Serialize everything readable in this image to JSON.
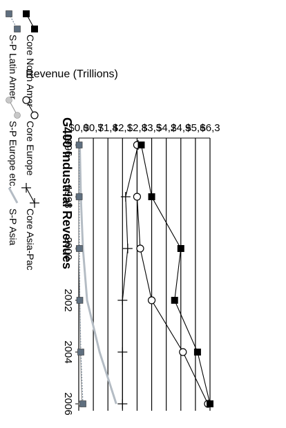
{
  "chart_data": {
    "type": "line",
    "title": "G400 Industrial Revenues",
    "ylabel": "Revenue (Trillions)",
    "xlabel": "",
    "x": [
      1996,
      1998,
      2000,
      2002,
      2004,
      2006
    ],
    "x_tick_labels": [
      "1996",
      "1998",
      "2000",
      "2002",
      "2004",
      "2006"
    ],
    "ylim": [
      0,
      6.3
    ],
    "y_ticks": [
      0,
      0.7,
      1.4,
      2.1,
      2.8,
      3.5,
      4.2,
      4.9,
      5.6,
      6.3
    ],
    "y_tick_labels": [
      "$0,0",
      "$0,7",
      "$1,4",
      "$2,1",
      "$2,8",
      "$3,5",
      "$4,2",
      "$4,9",
      "$5,6",
      "$6,3"
    ],
    "grid": true,
    "legend_position": "bottom",
    "orientation": "rotated-90-clockwise",
    "series": [
      {
        "name": "Core North Amer",
        "marker": "filled-square",
        "color": "#000000",
        "values": [
          3.0,
          3.5,
          4.9,
          4.6,
          5.7,
          6.3
        ]
      },
      {
        "name": "Core Europe",
        "marker": "open-circle",
        "color": "#000000",
        "values": [
          2.8,
          2.8,
          2.95,
          3.5,
          5.0,
          6.2
        ]
      },
      {
        "name": "Core Asia-Pac",
        "marker": "plus",
        "color": "#000000",
        "values": [
          2.85,
          2.25,
          2.35,
          2.1,
          2.1,
          2.1
        ]
      },
      {
        "name": "S-P Latin Amer",
        "marker": "gray-square",
        "color": "#5f6f7f",
        "values": [
          0.02,
          0.02,
          0.03,
          0.05,
          0.1,
          0.2
        ]
      },
      {
        "name": "S-P Europe etc.",
        "marker": "gray-sphere",
        "color": "#a8a8a8",
        "values": [
          0.0,
          0.0,
          0.0,
          0.05,
          0.08,
          0.15
        ]
      },
      {
        "name": "S-P Asia",
        "marker": "none",
        "color": "#a8b0b8",
        "values": [
          0.05,
          0.1,
          0.2,
          0.4,
          1.0,
          1.8
        ]
      }
    ]
  }
}
